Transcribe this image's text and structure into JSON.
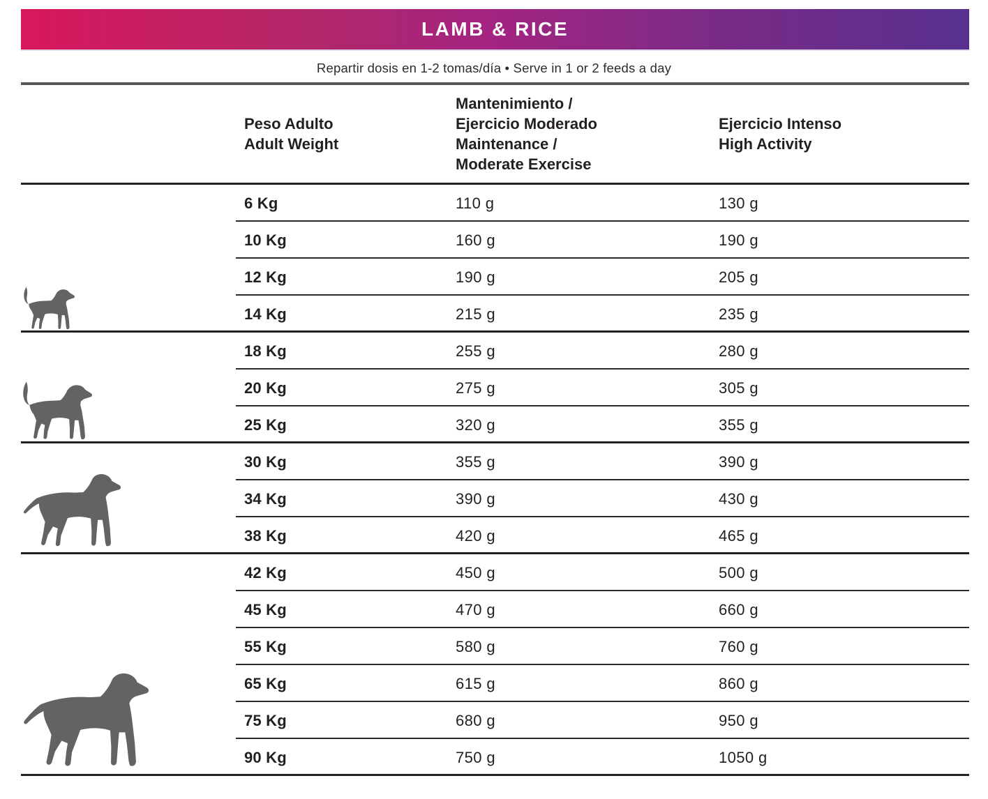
{
  "banner": {
    "title": "LAMB & RICE",
    "colors": {
      "gradient_left": "#d8175c",
      "gradient_mid": "#a32482",
      "gradient_right": "#57308f",
      "text": "#ffffff"
    }
  },
  "subtitle": "Repartir dosis en 1-2 tomas/día • Serve in 1 or 2 feeds a day",
  "table": {
    "columns": [
      {
        "id": "weight",
        "lines": [
          "Peso Adulto",
          "Adult Weight"
        ]
      },
      {
        "id": "maintenance",
        "lines": [
          "Mantenimiento /",
          "Ejercicio Moderado",
          "Maintenance /",
          "Moderate Exercise"
        ]
      },
      {
        "id": "high_activity",
        "lines": [
          "Ejercicio Intenso",
          "High Activity"
        ]
      }
    ],
    "groups": [
      {
        "dog": "small",
        "rows": [
          {
            "weight": "6 Kg",
            "maintenance": "110 g",
            "high_activity": "130 g"
          },
          {
            "weight": "10 Kg",
            "maintenance": "160 g",
            "high_activity": "190 g"
          },
          {
            "weight": "12 Kg",
            "maintenance": "190 g",
            "high_activity": "205 g"
          },
          {
            "weight": "14 Kg",
            "maintenance": "215 g",
            "high_activity": "235 g"
          }
        ]
      },
      {
        "dog": "medium",
        "rows": [
          {
            "weight": "18 Kg",
            "maintenance": "255 g",
            "high_activity": "280 g"
          },
          {
            "weight": "20 Kg",
            "maintenance": "275 g",
            "high_activity": "305 g"
          },
          {
            "weight": "25 Kg",
            "maintenance": "320 g",
            "high_activity": "355 g"
          }
        ]
      },
      {
        "dog": "large",
        "rows": [
          {
            "weight": "30 Kg",
            "maintenance": "355 g",
            "high_activity": "390 g"
          },
          {
            "weight": "34 Kg",
            "maintenance": "390 g",
            "high_activity": "430 g"
          },
          {
            "weight": "38 Kg",
            "maintenance": "420 g",
            "high_activity": "465 g"
          }
        ]
      },
      {
        "dog": "giant",
        "rows": [
          {
            "weight": "42 Kg",
            "maintenance": "450 g",
            "high_activity": "500 g"
          },
          {
            "weight": "45 Kg",
            "maintenance": "470 g",
            "high_activity": "660 g"
          },
          {
            "weight": "55 Kg",
            "maintenance": "580 g",
            "high_activity": "760 g"
          },
          {
            "weight": "65 Kg",
            "maintenance": "615 g",
            "high_activity": "860 g"
          },
          {
            "weight": "75 Kg",
            "maintenance": "680 g",
            "high_activity": "950 g"
          },
          {
            "weight": "90 Kg",
            "maintenance": "750 g",
            "high_activity": "1050 g"
          }
        ]
      }
    ]
  },
  "colors": {
    "text": "#231f20",
    "table_line": "#232021",
    "row_line": "#28282a",
    "top_rule": "#55565a",
    "dog_silhouette": "#616365"
  }
}
